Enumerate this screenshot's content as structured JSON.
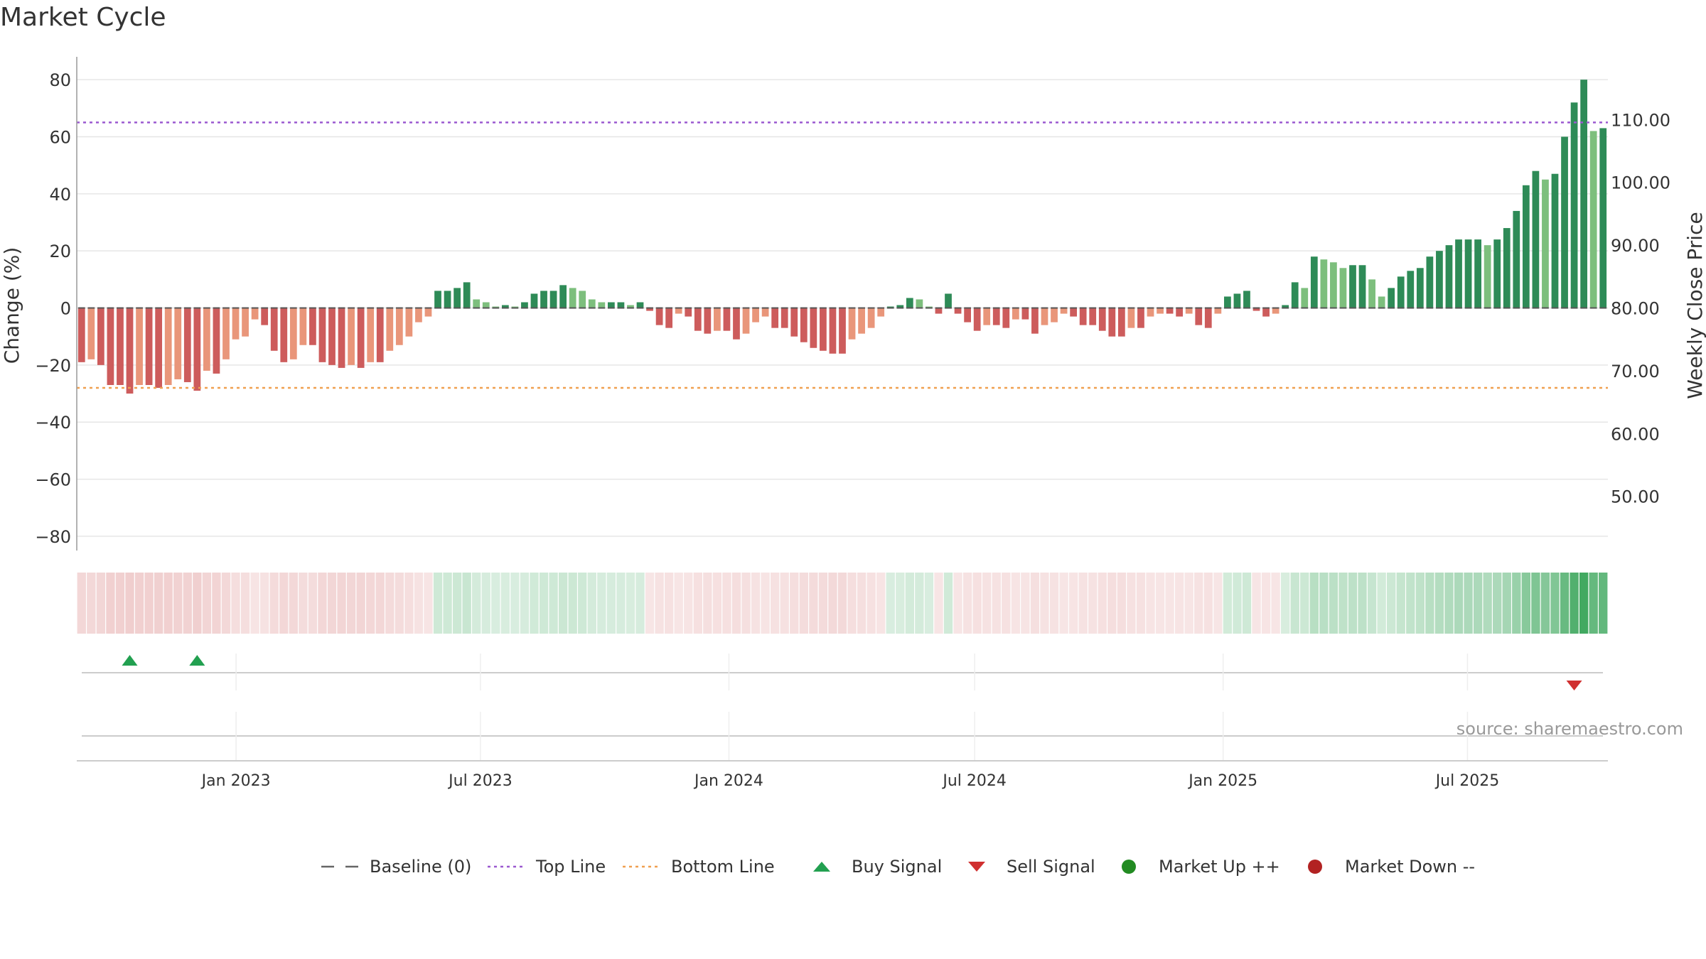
{
  "title": "Market Cycle",
  "source_text": "source: sharemaestro.com",
  "colors": {
    "strong_up": "#2e8b57",
    "mild_up": "#7dbf7d",
    "strong_down": "#cd5c5c",
    "mild_down": "#e9967a",
    "top_line": "#9b59d0",
    "bottom_line": "#f0a050",
    "buy": "#22a050",
    "sell": "#d03030",
    "market_up": "#228b22",
    "market_down": "#b22222"
  },
  "legend": [
    {
      "label": "Baseline (0)",
      "symbol": "dash-line",
      "color": "#666666"
    },
    {
      "label": "Top Line",
      "symbol": "dot-line",
      "color": "#9b59d0"
    },
    {
      "label": "Bottom Line",
      "symbol": "dot-line",
      "color": "#f0a050"
    },
    {
      "label": "Buy Signal",
      "symbol": "triangle-up",
      "color": "#22a050"
    },
    {
      "label": "Sell Signal",
      "symbol": "triangle-down",
      "color": "#d03030"
    },
    {
      "label": "Market Up ++",
      "symbol": "circle",
      "color": "#228b22"
    },
    {
      "label": "Market Down --",
      "symbol": "circle",
      "color": "#b22222"
    }
  ],
  "chart_data": {
    "type": "bar",
    "title": "Market Cycle",
    "ylabel": "Change (%)",
    "y2label": "Weekly Close Price",
    "ylim": [
      -85,
      88
    ],
    "yticks": [
      80,
      60,
      40,
      20,
      0,
      -20,
      -40,
      -60,
      -80
    ],
    "ytick_labels": [
      "80",
      "60",
      "40",
      "20",
      "0",
      "−20",
      "−40",
      "−60",
      "−80"
    ],
    "y2ticks": [
      110,
      100,
      90,
      80,
      70,
      60,
      50
    ],
    "y2tick_labels": [
      "110.00",
      "100.00",
      "90.00",
      "80.00",
      "70.00",
      "60.00",
      "50.00"
    ],
    "y2_zero_value": 80,
    "y2_value_per_unit": 0.4545,
    "x_start": "2022-09-05",
    "x_end": "2025-10-13",
    "xticks": [
      {
        "date": "2023-01-01",
        "label": "Jan 2023"
      },
      {
        "date": "2023-07-01",
        "label": "Jul 2023"
      },
      {
        "date": "2024-01-01",
        "label": "Jan 2024"
      },
      {
        "date": "2024-07-01",
        "label": "Jul 2024"
      },
      {
        "date": "2025-01-01",
        "label": "Jan 2025"
      },
      {
        "date": "2025-07-01",
        "label": "Jul 2025"
      }
    ],
    "top_line": 65,
    "bottom_line": -28,
    "baseline": 0,
    "grid": true,
    "legend_position": "bottom",
    "values": [
      -19,
      -18,
      -20,
      -27,
      -27,
      -30,
      -27,
      -27,
      -28,
      -27,
      -25,
      -26,
      -29,
      -22,
      -23,
      -18,
      -11,
      -10,
      -4,
      -6,
      -15,
      -19,
      -18,
      -13,
      -13,
      -19,
      -20,
      -21,
      -20,
      -21,
      -19,
      -19,
      -15,
      -13,
      -10,
      -5,
      -3,
      6,
      6,
      7,
      9,
      3,
      2,
      0.5,
      1,
      0.5,
      2,
      5,
      6,
      6,
      8,
      7,
      6,
      3,
      2,
      2,
      2,
      1,
      2,
      -1,
      -6,
      -7,
      -2,
      -3,
      -8,
      -9,
      -8,
      -8,
      -11,
      -9,
      -5,
      -3,
      -7,
      -7,
      -10,
      -12,
      -14,
      -15,
      -16,
      -16,
      -11,
      -9,
      -7,
      -3,
      0.5,
      1,
      3.5,
      3,
      0.5,
      -2,
      5,
      -2,
      -5,
      -8,
      -6,
      -6,
      -7,
      -4,
      -4,
      -9,
      -6,
      -5,
      -2,
      -3,
      -6,
      -6,
      -8,
      -10,
      -10,
      -7,
      -7,
      -3,
      -2,
      -2,
      -3,
      -2,
      -6,
      -7,
      -2,
      4,
      5,
      6,
      -1,
      -3,
      -2,
      1,
      9,
      7,
      18,
      17,
      16,
      14,
      15,
      15,
      10,
      4,
      7,
      11,
      13,
      14,
      18,
      20,
      22,
      24,
      24,
      24,
      22,
      24,
      28,
      34,
      43,
      48,
      45,
      47,
      60,
      72,
      80,
      62,
      63
    ],
    "signals": [
      {
        "index": 5,
        "type": "buy"
      },
      {
        "index": 12,
        "type": "buy"
      },
      {
        "index": 155,
        "type": "sell"
      }
    ]
  }
}
